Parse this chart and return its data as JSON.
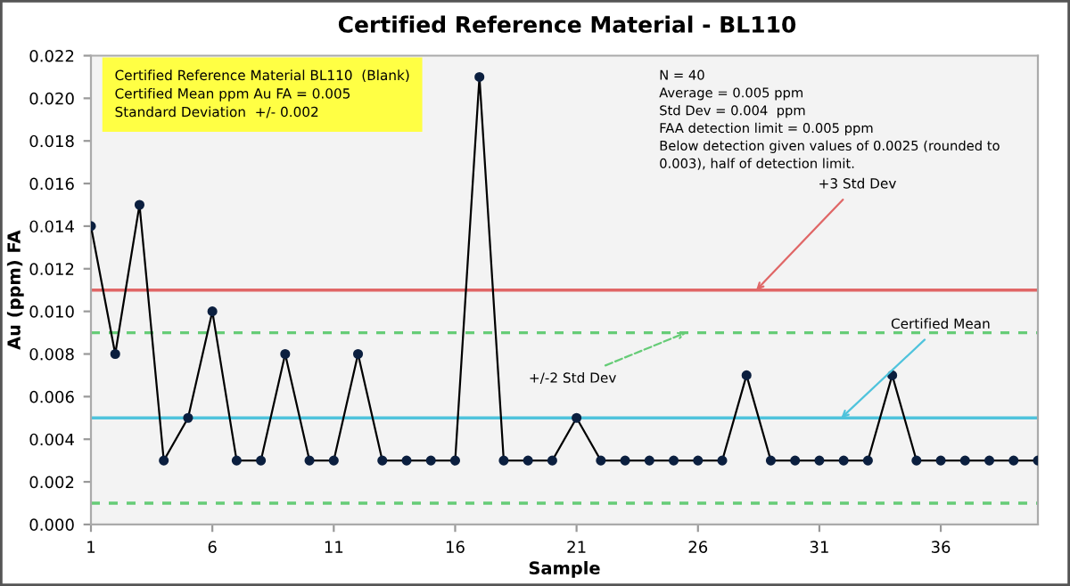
{
  "chart_data": {
    "type": "line",
    "title": "Certified Reference Material - BL110",
    "xlabel": "Sample",
    "ylabel": "Au (ppm) FA",
    "x": [
      1,
      2,
      3,
      4,
      5,
      6,
      7,
      8,
      9,
      10,
      11,
      12,
      13,
      14,
      15,
      16,
      17,
      18,
      19,
      20,
      21,
      22,
      23,
      24,
      25,
      26,
      27,
      28,
      29,
      30,
      31,
      32,
      33,
      34,
      35,
      36,
      37,
      38,
      39,
      40
    ],
    "series": [
      {
        "color": "#000000",
        "values": [
          0.014,
          0.008,
          0.015,
          0.003,
          0.005,
          0.01,
          0.003,
          0.003,
          0.008,
          0.003,
          0.003,
          0.008,
          0.003,
          0.003,
          0.003,
          0.003,
          0.021,
          0.003,
          0.003,
          0.003,
          0.005,
          0.003,
          0.003,
          0.003,
          0.003,
          0.003,
          0.003,
          0.007,
          0.003,
          0.003,
          0.003,
          0.003,
          0.003,
          0.007,
          0.003,
          0.003,
          0.003,
          0.003,
          0.003,
          0.003
        ]
      }
    ],
    "marker": "circle",
    "line_style": "solid",
    "grid": false,
    "legend": false,
    "xlim": [
      1,
      40
    ],
    "xticks": [
      1,
      6,
      11,
      16,
      21,
      26,
      31,
      36
    ],
    "ylim": [
      0,
      0.022
    ],
    "yticks": [
      {
        "value": 0,
        "label": "0.000"
      },
      {
        "value": 0.002,
        "label": "0.002"
      },
      {
        "value": 0.004,
        "label": "0.004"
      },
      {
        "value": 0.006,
        "label": "0.006"
      },
      {
        "value": 0.008,
        "label": "0.008"
      },
      {
        "value": 0.01,
        "label": "0.010"
      },
      {
        "value": 0.012,
        "label": "0.012"
      },
      {
        "value": 0.014,
        "label": "0.014"
      },
      {
        "value": 0.016,
        "label": "0.016"
      },
      {
        "value": 0.018,
        "label": "0.018"
      },
      {
        "value": 0.02,
        "label": "0.020"
      },
      {
        "value": 0.022,
        "label": "0.022"
      }
    ],
    "ref_lines": [
      {
        "axis": "y",
        "value": 0.011,
        "color": "#e06666",
        "line_style": "solid"
      },
      {
        "axis": "y",
        "value": 0.009,
        "color": "#66cc77",
        "line_style": "dashed"
      },
      {
        "axis": "y",
        "value": 0.005,
        "color": "#4fc3dc",
        "line_style": "solid"
      },
      {
        "axis": "y",
        "value": 0.001,
        "color": "#66cc77",
        "line_style": "dashed"
      }
    ],
    "annotations": [
      "Certified Reference Material BL110  (Blank)\nCertified Mean ppm Au FA = 0.005\nStandard Deviation  +/- 0.002",
      "N = 40\nAverage = 0.005 ppm\nStd Dev = 0.004  ppm\nFAA detection limit = 0.005 ppm\nBelow detection given values of 0.0025 (rounded to\n0.003), half of detection limit.",
      {
        "text": "+3 Std Dev",
        "x": 28.4,
        "y": 0.011
      },
      {
        "text": "+/-2 Std Dev",
        "x": 25.5,
        "y": 0.009
      },
      {
        "text": "Certified Mean",
        "x": 31.9,
        "y": 0.005
      }
    ]
  }
}
